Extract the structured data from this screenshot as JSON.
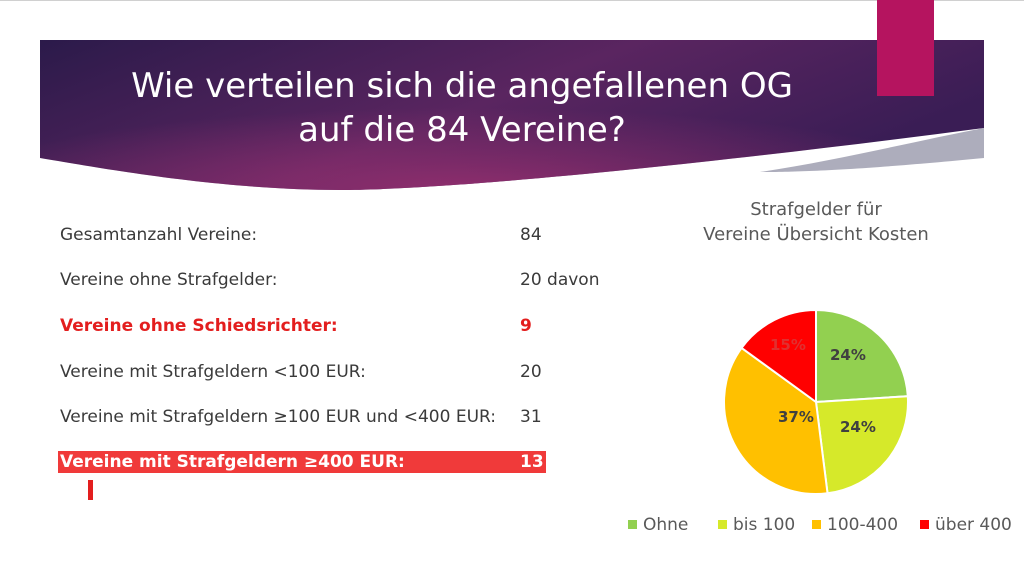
{
  "header": {
    "title_line1": "Wie verteilen sich die angefallenen OG",
    "title_line2": "auf die 84 Vereine?"
  },
  "colors": {
    "banner_dark": "#2b1a4a",
    "banner_mid": "#5a2560",
    "banner_light": "#9a3070",
    "accent": "#b5145f",
    "highlight_red": "#f03a3a",
    "text_red": "#e31e1e"
  },
  "stats": [
    {
      "label": "Gesamtanzahl Vereine:",
      "value": "84",
      "style": "normal"
    },
    {
      "label": "Vereine ohne Strafgelder:",
      "value": "20 davon",
      "style": "normal"
    },
    {
      "label": "Vereine ohne Schiedsrichter:",
      "value": "9",
      "style": "red"
    },
    {
      "label": "Vereine mit Strafgeldern <100 EUR:",
      "value": "20",
      "style": "normal"
    },
    {
      "label": "Vereine mit Strafgeldern ≥100 EUR und <400 EUR:",
      "value": "31",
      "style": "normal"
    },
    {
      "label": "Vereine mit Strafgeldern ≥400 EUR:",
      "value": "13",
      "style": "highlight"
    }
  ],
  "chart_data": {
    "type": "pie",
    "title_line1": "Strafgelder für",
    "title_line2": "Vereine Übersicht Kosten",
    "categories": [
      "Ohne",
      "bis 100",
      "100-400",
      "über 400"
    ],
    "values": [
      24,
      24,
      37,
      15
    ],
    "labels": [
      "24%",
      "24%",
      "37%",
      "15%"
    ],
    "colors": [
      "#92d050",
      "#d6e92a",
      "#ffc000",
      "#ff0000"
    ],
    "label_colors": [
      "#404040",
      "#404040",
      "#404040",
      "#e03030"
    ],
    "legend_position": "bottom"
  }
}
